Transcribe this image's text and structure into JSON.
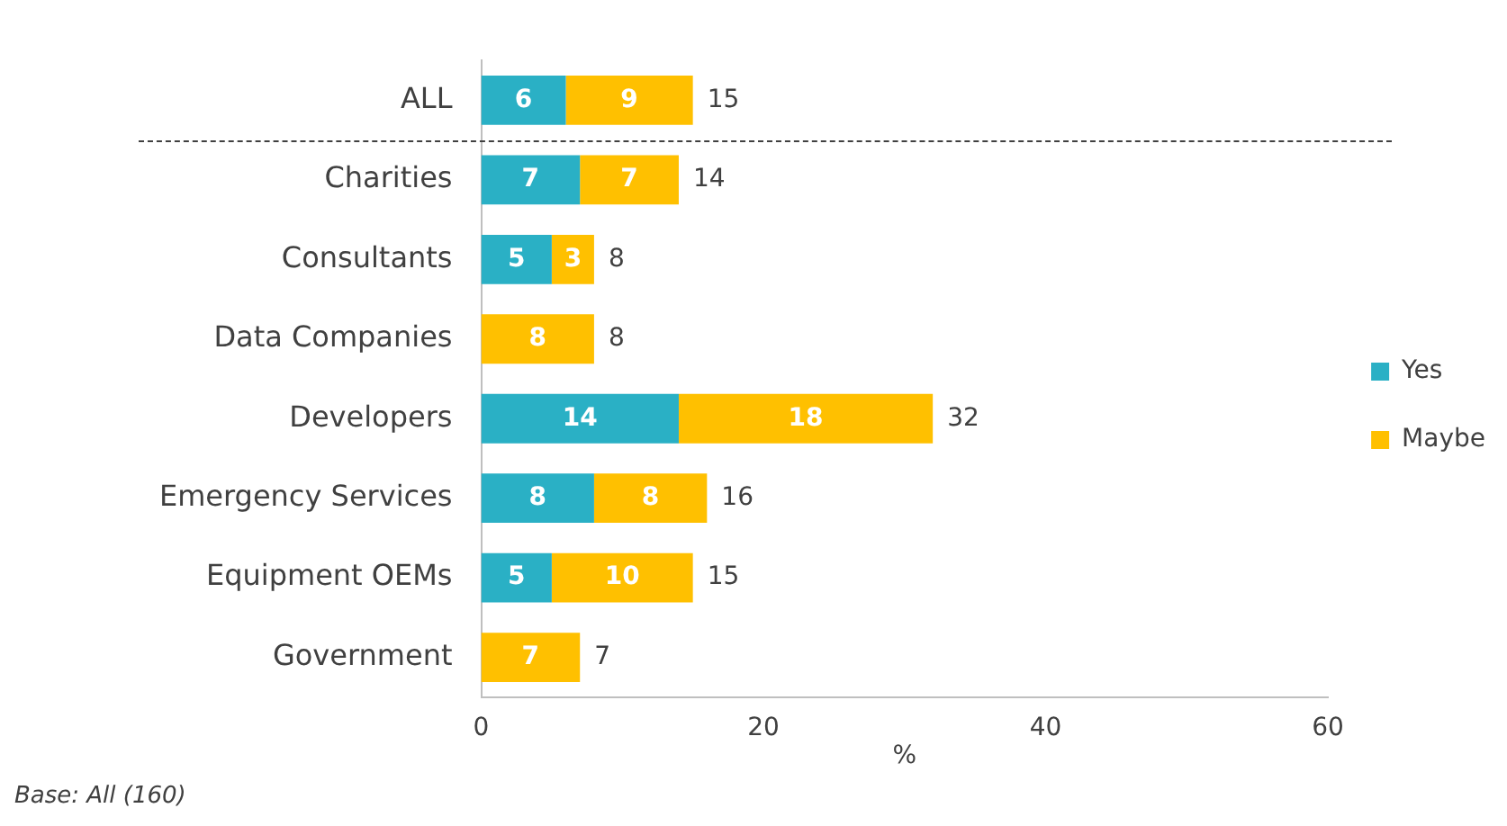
{
  "chart_data": {
    "type": "bar",
    "orientation": "horizontal",
    "stacked": true,
    "xlabel": "%",
    "categories": [
      "ALL",
      "Charities",
      "Consultants",
      "Data Companies",
      "Developers",
      "Emergency Services",
      "Equipment OEMs",
      "Government"
    ],
    "series": [
      {
        "name": "Yes",
        "color": "#2ab0c5",
        "values": [
          6,
          7,
          5,
          null,
          14,
          8,
          5,
          null
        ]
      },
      {
        "name": "Maybe",
        "color": "#ffc000",
        "values": [
          9,
          7,
          3,
          8,
          18,
          8,
          10,
          7
        ]
      }
    ],
    "xlim": [
      0,
      60
    ],
    "xticks": [
      0,
      20,
      40,
      60
    ],
    "grid": false,
    "legend": "right",
    "data_labels": true,
    "totals": [
      "15",
      "14",
      "8",
      "8",
      "32",
      "16",
      "15",
      "7"
    ],
    "annotations": [
      "Base: All (160)"
    ]
  }
}
